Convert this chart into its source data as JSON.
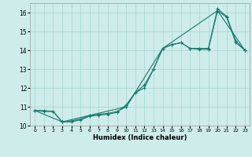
{
  "xlabel": "Humidex (Indice chaleur)",
  "background_color": "#ceecea",
  "grid_color": "#add8d4",
  "line_color": "#1a7a6e",
  "xlim": [
    -0.5,
    23.5
  ],
  "ylim": [
    10.0,
    16.5
  ],
  "yticks": [
    10,
    11,
    12,
    13,
    14,
    15,
    16
  ],
  "xticks": [
    0,
    1,
    2,
    3,
    4,
    5,
    6,
    7,
    8,
    9,
    10,
    11,
    12,
    13,
    14,
    15,
    16,
    17,
    18,
    19,
    20,
    21,
    22,
    23
  ],
  "line1_x": [
    0,
    1,
    2,
    3,
    4,
    5,
    6,
    7,
    8,
    9,
    10,
    11,
    12,
    13,
    14,
    15,
    16,
    17,
    18,
    19,
    20,
    21,
    22,
    23
  ],
  "line1_y": [
    10.8,
    10.8,
    10.75,
    10.2,
    10.25,
    10.35,
    10.55,
    10.6,
    10.65,
    10.75,
    11.0,
    11.75,
    12.0,
    13.0,
    14.1,
    14.3,
    14.4,
    14.1,
    14.1,
    14.1,
    16.2,
    15.8,
    14.5,
    14.0
  ],
  "line2_x": [
    0,
    1,
    2,
    3,
    4,
    5,
    6,
    7,
    8,
    9,
    10,
    11,
    12,
    13,
    14,
    15,
    16,
    17,
    18,
    19,
    20,
    21,
    22,
    23
  ],
  "line2_y": [
    10.8,
    10.75,
    10.75,
    10.2,
    10.2,
    10.3,
    10.5,
    10.55,
    10.6,
    10.7,
    11.1,
    11.75,
    12.15,
    13.0,
    14.1,
    14.3,
    14.4,
    14.1,
    14.05,
    14.05,
    16.1,
    15.75,
    14.4,
    14.0
  ],
  "line3_x": [
    0,
    3,
    10,
    14,
    20,
    23
  ],
  "line3_y": [
    10.8,
    10.2,
    11.0,
    14.1,
    16.1,
    14.0
  ]
}
